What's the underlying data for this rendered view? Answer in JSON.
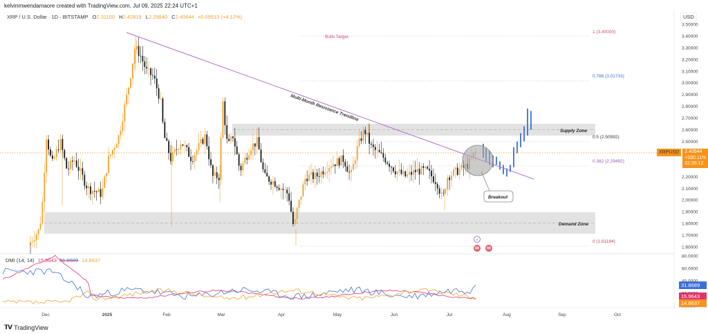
{
  "header": {
    "attribution": "kelvinmwendamaore created with TradingView.com, Jul 09, 2025 22:24 UTC+1",
    "symbol_title": "XRP / U.S. Dollar · 1D · BITSTAMP",
    "open_label": "O",
    "open": "2.31100",
    "high_label": "H",
    "high": "2.42819",
    "low_label": "L",
    "low": "2.29840",
    "close_label": "C",
    "close": "2.40644",
    "change": "+0.09513 (+4.12%)"
  },
  "price_axis": {
    "currency": "USD",
    "ticks": [
      "3.50000",
      "3.40000",
      "3.30000",
      "3.20000",
      "3.10000",
      "3.00000",
      "2.90000",
      "2.80000",
      "2.70000",
      "2.60000",
      "2.50000",
      "2.20000",
      "2.10000",
      "2.00000",
      "1.90000",
      "1.80000",
      "1.70000",
      "1.60000"
    ],
    "ticker": "XRPUSD",
    "last_price": "2.40644",
    "last_change": "+330.11%",
    "countdown": "02:35:12"
  },
  "dmi_axis": {
    "ticks": [
      "80.0000",
      "60.0000",
      "40.0000",
      "20.0000",
      "0.0000"
    ],
    "plus_di": "31.8689",
    "minus_di": "15.9643",
    "adx": "14.8637"
  },
  "dmi_legend": {
    "name": "DMI (14, 14)",
    "v1": "15.9643",
    "v2": "31.8689",
    "v3": "14.8637"
  },
  "time_axis": [
    "Dec",
    "2025",
    "Feb",
    "Mar",
    "Apr",
    "May",
    "Jun",
    "Jul",
    "Aug",
    "Sep",
    "Oct"
  ],
  "annotations": {
    "bulls_target": "Bulls Target",
    "fib_1": "1 (3.40000)",
    "fib_786": "0.786 (3.01733)",
    "fib_5": "0.5 (2.50592)",
    "fib_382": "0.382 (2.29492)",
    "fib_0": "0 (1.61184)",
    "supply_zone": "Supply Zone",
    "demand_zone": "Demand Zone",
    "trendline": "Multi-Month Resistance Trendline",
    "breakout": "Breakout"
  },
  "footer": {
    "brand": "TradingView"
  },
  "colors": {
    "bull": "#f0a02a",
    "bear": "#1a1a1a",
    "projection": "#3c6fd8",
    "trendline": "#b36fd0",
    "zone": "#e0e0e0",
    "fib_1": "#d9485f",
    "fib_786": "#3c6fd8",
    "fib_382": "#9b59b6",
    "fib_0": "#d9485f",
    "plus_di": "#3c6fd8",
    "minus_di": "#e0336a",
    "adx": "#f0a02a"
  },
  "chart_data": {
    "type": "candlestick",
    "title": "XRP / U.S. Dollar · 1D · BITSTAMP",
    "xlabel": "",
    "ylabel": "USD",
    "ylim": [
      1.55,
      3.52
    ],
    "x": [
      "Dec",
      "2025",
      "Feb",
      "Mar",
      "Apr",
      "May",
      "Jun",
      "Jul",
      "Aug",
      "Sep",
      "Oct"
    ],
    "last_close": 2.40644,
    "levels": [
      {
        "name": "Fib 1",
        "value": 3.4
      },
      {
        "name": "Fib 0.786",
        "value": 3.01733
      },
      {
        "name": "Fib 0.5",
        "value": 2.50592
      },
      {
        "name": "Fib 0.382",
        "value": 2.29492
      },
      {
        "name": "Fib 0",
        "value": 1.61184
      }
    ],
    "zones": [
      {
        "name": "Supply Zone",
        "from": 2.55,
        "to": 2.65
      },
      {
        "name": "Demand Zone",
        "from": 1.73,
        "to": 1.91
      }
    ],
    "trendline": {
      "name": "Multi-Month Resistance Trendline",
      "from_price": 3.4,
      "from_date": "Jan 16",
      "to_price": 2.18,
      "to_date": "Jul 28"
    },
    "candles_approx": [
      {
        "x": "Nov 18",
        "o": 1.15,
        "h": 1.55,
        "l": 1.0,
        "c": 1.5
      },
      {
        "x": "Dec 1",
        "o": 1.9,
        "h": 2.9,
        "l": 1.85,
        "c": 2.6
      },
      {
        "x": "Dec 3",
        "o": 2.6,
        "h": 2.85,
        "l": 2.0,
        "c": 2.2
      },
      {
        "x": "Dec 15",
        "o": 2.35,
        "h": 2.6,
        "l": 2.2,
        "c": 2.45
      },
      {
        "x": "Dec 30",
        "o": 2.05,
        "h": 2.15,
        "l": 2.0,
        "c": 2.1
      },
      {
        "x": "Jan 16",
        "o": 2.9,
        "h": 3.4,
        "l": 2.8,
        "c": 3.3
      },
      {
        "x": "Jan 20",
        "o": 3.3,
        "h": 3.35,
        "l": 2.85,
        "c": 3.05
      },
      {
        "x": "Feb 3",
        "o": 2.9,
        "h": 3.0,
        "l": 1.77,
        "c": 2.5
      },
      {
        "x": "Feb 28",
        "o": 2.1,
        "h": 2.25,
        "l": 1.9,
        "c": 2.15
      },
      {
        "x": "Mar 2",
        "o": 2.15,
        "h": 3.0,
        "l": 2.1,
        "c": 2.95
      },
      {
        "x": "Mar 10",
        "o": 2.4,
        "h": 2.5,
        "l": 1.9,
        "c": 2.1
      },
      {
        "x": "Apr 7",
        "o": 1.95,
        "h": 2.0,
        "l": 1.61,
        "c": 1.75
      },
      {
        "x": "Apr 9",
        "o": 1.75,
        "h": 2.1,
        "l": 1.7,
        "c": 2.05
      },
      {
        "x": "May 12",
        "o": 2.4,
        "h": 2.65,
        "l": 2.35,
        "c": 2.6
      },
      {
        "x": "Jun 22",
        "o": 2.05,
        "h": 2.15,
        "l": 1.91,
        "c": 2.05
      },
      {
        "x": "Jul 9",
        "o": 2.311,
        "h": 2.42819,
        "l": 2.2984,
        "c": 2.40644
      }
    ]
  }
}
